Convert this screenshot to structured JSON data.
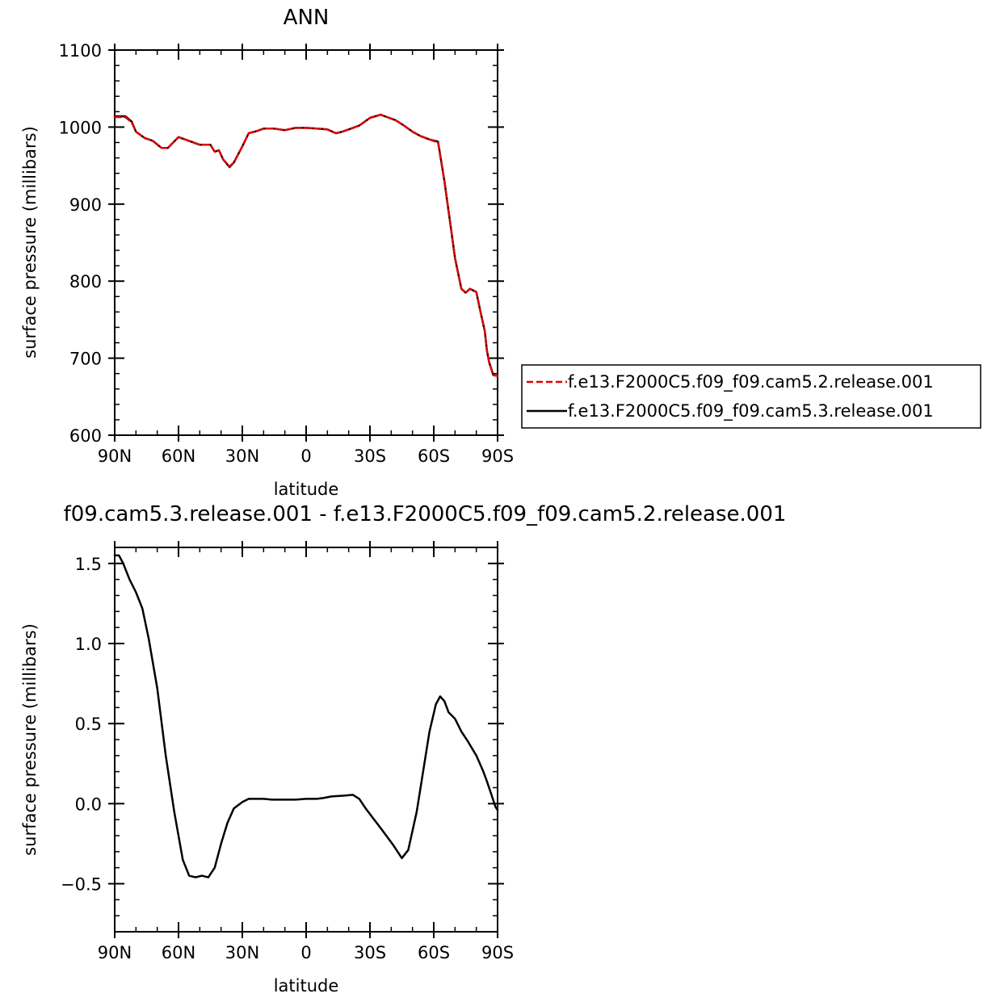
{
  "chart_data": [
    {
      "type": "line",
      "title": "ANN",
      "xlabel": "latitude",
      "ylabel": "surface pressure (millibars)",
      "x_ticks": [
        "90N",
        "60N",
        "30N",
        "0",
        "30S",
        "60S",
        "90S"
      ],
      "y_ticks": [
        "600",
        "700",
        "800",
        "900",
        "1000",
        "1100"
      ],
      "xlim": [
        90,
        -90
      ],
      "ylim": [
        600,
        1100
      ],
      "legend": "right",
      "series": [
        {
          "name": "f.e13.F2000C5.f09_f09.cam5.2.release.001",
          "color": "#e00000",
          "dash": "dashed",
          "x": [
            90,
            85,
            82,
            80,
            76,
            72,
            68,
            65,
            60,
            55,
            50,
            45,
            43,
            41,
            39,
            36,
            34,
            30,
            27,
            23,
            20,
            15,
            10,
            5,
            0,
            -5,
            -10,
            -14,
            -17,
            -20,
            -25,
            -30,
            -35,
            -38,
            -42,
            -46,
            -50,
            -54,
            -58,
            -62,
            -65,
            -66,
            -68,
            -70,
            -73,
            -75,
            -77,
            -80,
            -82,
            -84,
            -85,
            -86,
            -88,
            -90
          ],
          "y": [
            1013,
            1013,
            1006,
            994,
            986,
            982,
            973,
            973,
            987,
            982,
            977,
            977,
            968,
            970,
            958,
            949,
            954,
            975,
            992,
            995,
            998,
            998,
            996,
            999,
            999,
            998,
            997,
            992,
            994,
            997,
            1002,
            1012,
            1016,
            1013,
            1009,
            1002,
            994,
            988,
            984,
            980,
            930,
            910,
            870,
            830,
            790,
            785,
            790,
            786,
            760,
            735,
            710,
            695,
            678,
            677
          ]
        },
        {
          "name": "f.e13.F2000C5.f09_f09.cam5.3.release.001",
          "color": "#000000",
          "dash": "solid",
          "x": [
            90,
            85,
            82,
            80,
            76,
            72,
            68,
            65,
            60,
            55,
            50,
            45,
            43,
            41,
            39,
            36,
            34,
            30,
            27,
            23,
            20,
            15,
            10,
            5,
            0,
            -5,
            -10,
            -14,
            -17,
            -20,
            -25,
            -30,
            -35,
            -38,
            -42,
            -46,
            -50,
            -54,
            -58,
            -62,
            -65,
            -66,
            -68,
            -70,
            -73,
            -75,
            -77,
            -80,
            -82,
            -84,
            -85,
            -86,
            -88,
            -90
          ],
          "y": [
            1014,
            1014,
            1007,
            994,
            986,
            982,
            973,
            973,
            987,
            982,
            977,
            977,
            968,
            970,
            958,
            948,
            954,
            975,
            992,
            995,
            998,
            998,
            996,
            999,
            999,
            998,
            997,
            992,
            994,
            997,
            1002,
            1012,
            1016,
            1013,
            1009,
            1002,
            994,
            988,
            984,
            981,
            930,
            910,
            870,
            830,
            790,
            785,
            790,
            786,
            760,
            735,
            710,
            695,
            678,
            677
          ]
        }
      ]
    },
    {
      "type": "line",
      "title": "f09.cam5.3.release.001 - f.e13.F2000C5.f09_f09.cam5.2.release.001",
      "xlabel": "latitude",
      "ylabel": "surface pressure (millibars)",
      "x_ticks": [
        "90N",
        "60N",
        "30N",
        "0",
        "30S",
        "60S",
        "90S"
      ],
      "y_ticks": [
        "-0.5",
        "0.0",
        "0.5",
        "1.0",
        "1.5"
      ],
      "xlim": [
        90,
        -90
      ],
      "ylim": [
        -0.8,
        1.6
      ],
      "series": [
        {
          "color": "#000000",
          "x": [
            90,
            88,
            86,
            83,
            80,
            77,
            74,
            70,
            66,
            62,
            58,
            55,
            52,
            49,
            46,
            43,
            40,
            37,
            34,
            30,
            27,
            24,
            20,
            16,
            10,
            5,
            0,
            -5,
            -8,
            -12,
            -18,
            -22,
            -25,
            -28,
            -32,
            -36,
            -41,
            -45,
            -48,
            -52,
            -55,
            -58,
            -61,
            -63,
            -65,
            -67,
            -70,
            -73,
            -76,
            -80,
            -83,
            -85,
            -87,
            -89,
            -90
          ],
          "y": [
            1.55,
            1.55,
            1.5,
            1.4,
            1.32,
            1.22,
            1.03,
            0.72,
            0.3,
            -0.05,
            -0.35,
            -0.45,
            -0.46,
            -0.45,
            -0.46,
            -0.4,
            -0.25,
            -0.12,
            -0.03,
            0.01,
            0.03,
            0.03,
            0.03,
            0.025,
            0.025,
            0.025,
            0.03,
            0.03,
            0.035,
            0.045,
            0.05,
            0.055,
            0.03,
            -0.03,
            -0.1,
            -0.17,
            -0.26,
            -0.34,
            -0.29,
            -0.05,
            0.2,
            0.45,
            0.62,
            0.67,
            0.64,
            0.57,
            0.53,
            0.45,
            0.39,
            0.3,
            0.21,
            0.14,
            0.06,
            -0.02,
            -0.04
          ]
        }
      ]
    }
  ]
}
